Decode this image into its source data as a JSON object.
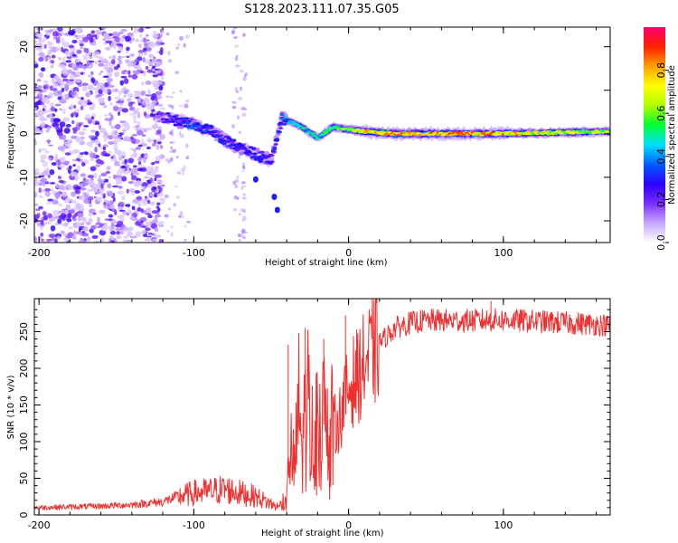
{
  "title": "S128.2023.111.07.35.G05",
  "chart_data": [
    {
      "type": "heatmap",
      "name": "spectrogram",
      "xlabel": "Height of straight line (km)",
      "ylabel": "Frequency (Hz)",
      "xlim": [
        -203,
        169
      ],
      "ylim": [
        -25,
        24.5
      ],
      "xticks": [
        -200,
        -100,
        0,
        100
      ],
      "xtick_labels": [
        "-200",
        "-100",
        "0",
        "100"
      ],
      "yticks": [
        -20,
        -10,
        0,
        10,
        20
      ],
      "ytick_labels": [
        "-20",
        "-10",
        "0",
        "10",
        "20"
      ],
      "colorbar": {
        "label": "Normalized spectral amplitude",
        "range": [
          0,
          1
        ],
        "ticks": [
          0.0,
          0.2,
          0.4,
          0.6,
          0.8
        ],
        "tick_labels": [
          "0.0",
          "0.2",
          "0.4",
          "0.6",
          "0.8"
        ],
        "colormap": [
          "#ffffff",
          "#c7a8ff",
          "#7a2cff",
          "#2a00ff",
          "#0060ff",
          "#00e0ff",
          "#00ff30",
          "#b0ff00",
          "#ffff00",
          "#ffa000",
          "#ff2000",
          "#ff0070"
        ]
      },
      "noise_region": {
        "x": [
          -203,
          -120
        ],
        "y": [
          -25,
          24.5
        ]
      },
      "signal_ridge": [
        {
          "x": -123,
          "y": 4.0,
          "amp": 0.2
        },
        {
          "x": -112,
          "y": 3.0,
          "amp": 0.3
        },
        {
          "x": -100,
          "y": 2.0,
          "amp": 0.35
        },
        {
          "x": -88,
          "y": 0.5,
          "amp": 0.3
        },
        {
          "x": -75,
          "y": -2.5,
          "amp": 0.3
        },
        {
          "x": -62,
          "y": -4.5,
          "amp": 0.3
        },
        {
          "x": -50,
          "y": -6.0,
          "amp": 0.25
        },
        {
          "x": -43,
          "y": 3.5,
          "amp": 0.4
        },
        {
          "x": -32,
          "y": 2.0,
          "amp": 0.5
        },
        {
          "x": -20,
          "y": -1.0,
          "amp": 0.5
        },
        {
          "x": -10,
          "y": 1.5,
          "amp": 0.6
        },
        {
          "x": 0,
          "y": 1.0,
          "amp": 0.7
        },
        {
          "x": 10,
          "y": 0.5,
          "amp": 0.8
        },
        {
          "x": 30,
          "y": 0.0,
          "amp": 0.85
        },
        {
          "x": 60,
          "y": 0.0,
          "amp": 0.85
        },
        {
          "x": 90,
          "y": 0.0,
          "amp": 0.85
        },
        {
          "x": 120,
          "y": 0.2,
          "amp": 0.75
        },
        {
          "x": 169,
          "y": 0.5,
          "amp": 0.65
        }
      ]
    },
    {
      "type": "line",
      "name": "snr",
      "xlabel": "Height of straight line (km)",
      "ylabel": "SNR (10 * v/v)",
      "xlim": [
        -203,
        169
      ],
      "ylim": [
        0,
        295
      ],
      "xticks": [
        -200,
        -100,
        0,
        100
      ],
      "xtick_labels": [
        "-200",
        "-100",
        "0",
        "100"
      ],
      "yticks": [
        0,
        50,
        100,
        150,
        200,
        250
      ],
      "ytick_labels": [
        "0",
        "50",
        "100",
        "150",
        "200",
        "250"
      ],
      "color": "#ee3030",
      "series": [
        {
          "name": "SNR",
          "x": [
            -203,
            -180,
            -160,
            -140,
            -120,
            -110,
            -100,
            -90,
            -80,
            -70,
            -60,
            -50,
            -45,
            -40,
            -38,
            -35,
            -32,
            -30,
            -27,
            -24,
            -20,
            -17,
            -14,
            -10,
            -6,
            -2,
            2,
            6,
            10,
            15,
            20,
            25,
            30,
            40,
            50,
            60,
            80,
            100,
            120,
            140,
            160,
            169
          ],
          "y": [
            10,
            11,
            12,
            14,
            18,
            25,
            30,
            32,
            35,
            30,
            25,
            15,
            10,
            20,
            90,
            60,
            150,
            80,
            170,
            100,
            130,
            140,
            90,
            120,
            130,
            160,
            180,
            190,
            205,
            220,
            235,
            245,
            255,
            262,
            265,
            265,
            265,
            266,
            264,
            262,
            260,
            258
          ]
        }
      ],
      "peaks": [
        {
          "x": -39,
          "y": 232
        },
        {
          "x": -28,
          "y": 255
        },
        {
          "x": -16,
          "y": 240
        },
        {
          "x": -2,
          "y": 272
        },
        {
          "x": 92,
          "y": 292
        }
      ]
    }
  ]
}
